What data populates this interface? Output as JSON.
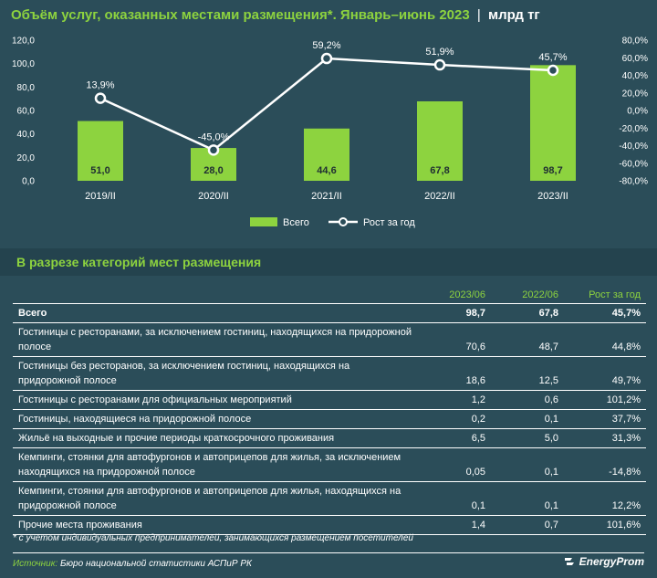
{
  "title": {
    "main": "Объём услуг, оказанных местами размещения*. Январь–июнь 2023",
    "separator": "|",
    "unit": "млрд тг"
  },
  "chart_data": {
    "type": "bar",
    "categories": [
      "2019/II",
      "2020/II",
      "2021/II",
      "2022/II",
      "2023/II"
    ],
    "series": [
      {
        "name": "Всего",
        "type": "bar",
        "axis": "left",
        "values": [
          51.0,
          28.0,
          44.6,
          67.8,
          98.7
        ],
        "labels": [
          "51,0",
          "28,0",
          "44,6",
          "67,8",
          "98,7"
        ]
      },
      {
        "name": "Рост за год",
        "type": "line",
        "axis": "right",
        "values": [
          13.9,
          -45.0,
          59.2,
          51.9,
          45.7
        ],
        "labels": [
          "13,9%",
          "-45,0%",
          "59,2%",
          "51,9%",
          "45,7%"
        ]
      }
    ],
    "ylim_left": [
      0,
      120
    ],
    "ylim_right": [
      -80,
      80
    ],
    "left_ticks": [
      "0,0",
      "20,0",
      "40,0",
      "60,0",
      "80,0",
      "100,0",
      "120,0"
    ],
    "right_ticks": [
      "-80,0%",
      "-60,0%",
      "-40,0%",
      "-20,0%",
      "0,0%",
      "20,0%",
      "40,0%",
      "60,0%",
      "80,0%"
    ],
    "legend_position": "bottom",
    "colors": {
      "bar": "#8dd33f",
      "line": "#ffffff",
      "background": "#2b4d59"
    }
  },
  "section": {
    "title": "В разрезе категорий мест размещения"
  },
  "table": {
    "headers": [
      "",
      "2023/06",
      "2022/06",
      "Рост за год"
    ],
    "rows": [
      {
        "label": "Всего",
        "c1": "98,7",
        "c2": "67,8",
        "c3": "45,7%"
      },
      {
        "label": "Гостиницы с ресторанами, за исключением гостиниц, находящихся на придорожной полосе",
        "c1": "70,6",
        "c2": "48,7",
        "c3": "44,8%"
      },
      {
        "label": "Гостиницы без ресторанов, за исключением гостиниц, находящихся на придорожной полосе",
        "c1": "18,6",
        "c2": "12,5",
        "c3": "49,7%"
      },
      {
        "label": "Гостиницы с ресторанами для официальных мероприятий",
        "c1": "1,2",
        "c2": "0,6",
        "c3": "101,2%"
      },
      {
        "label": "Гостиницы, находящиеся на придорожной полосе",
        "c1": "0,2",
        "c2": "0,1",
        "c3": "37,7%"
      },
      {
        "label": "Жильё на выходные и прочие периоды краткосрочного проживания",
        "c1": "6,5",
        "c2": "5,0",
        "c3": "31,3%"
      },
      {
        "label": "Кемпинги, стоянки для автофургонов и автоприцепов для жилья, за исключением находящихся на придорожной полосе",
        "c1": "0,05",
        "c2": "0,1",
        "c3": "-14,8%"
      },
      {
        "label": "Кемпинги, стоянки для автофургонов и автоприцепов для жилья, находящихся на придорожной полосе",
        "c1": "0,1",
        "c2": "0,1",
        "c3": "12,2%"
      },
      {
        "label": "Прочие места проживания",
        "c1": "1,4",
        "c2": "0,7",
        "c3": "101,6%"
      }
    ]
  },
  "footnote": "* с учётом индивидуальных предпринимателей, занимающихся размещением посетителей",
  "source": {
    "label": "Источник:",
    "text": "Бюро национальной статистики АСПиР РК"
  },
  "logo": {
    "text": "EnergyProm",
    "icon": "energyprom-logo-icon"
  }
}
